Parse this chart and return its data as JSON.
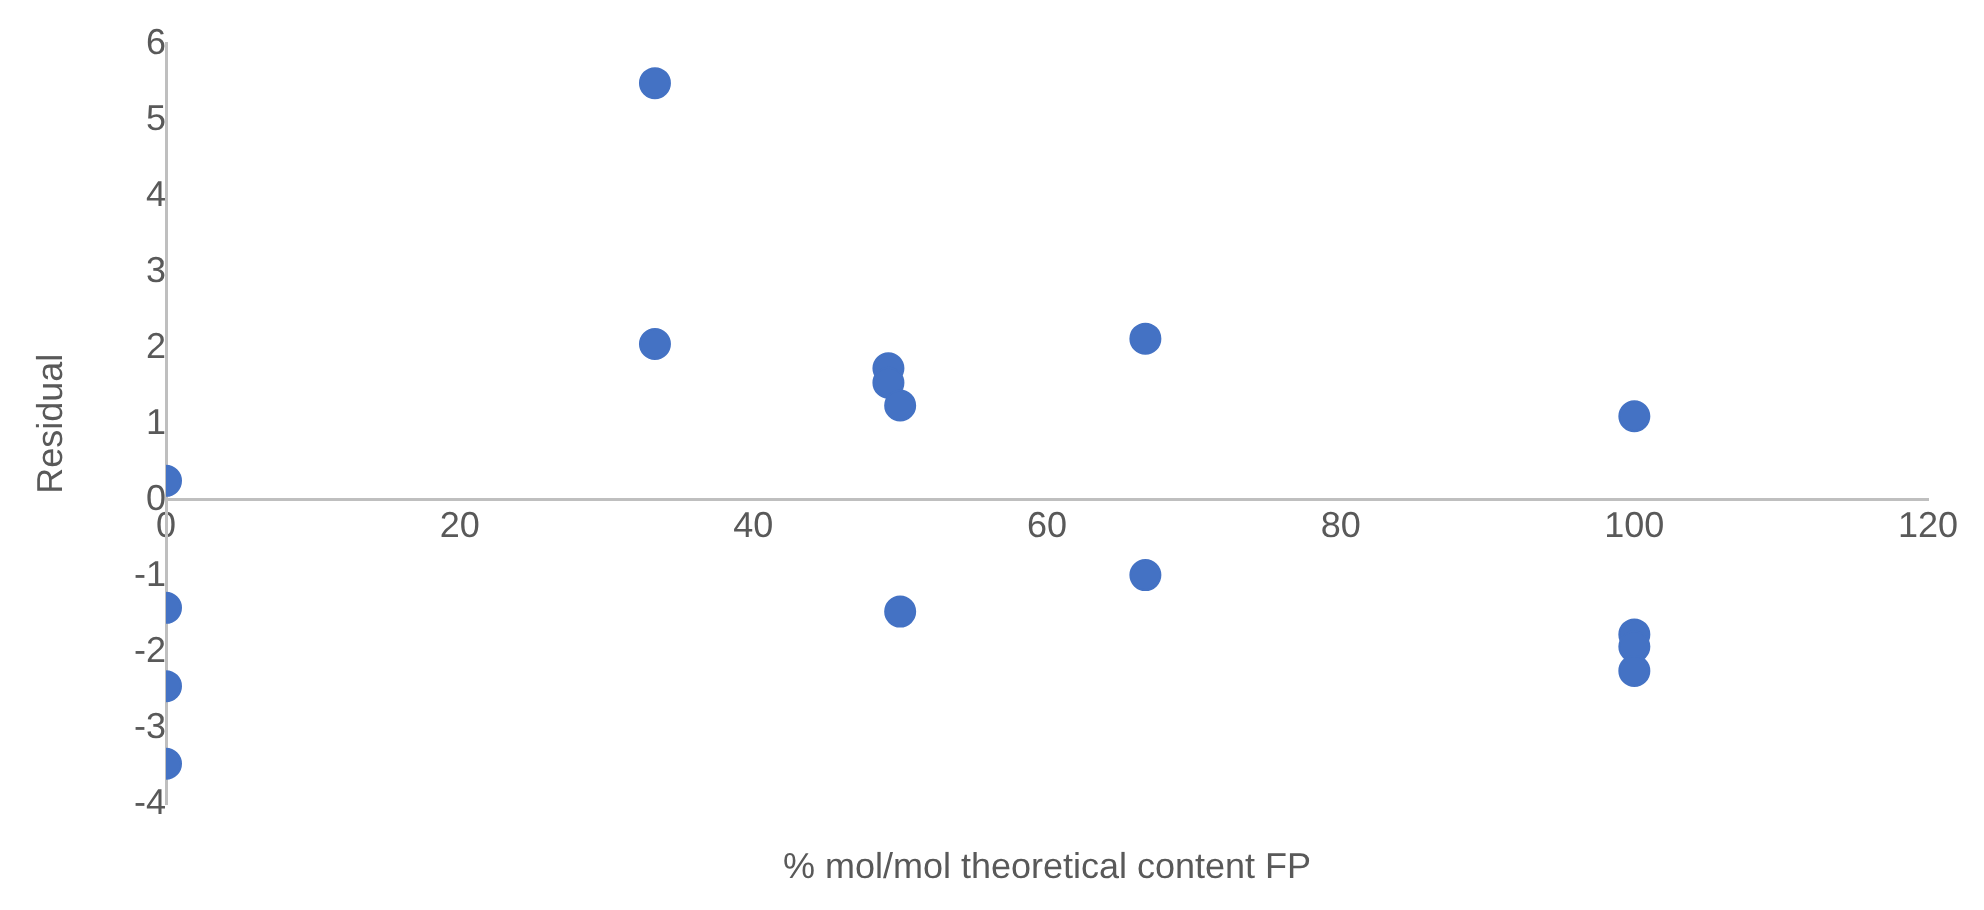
{
  "chart_data": {
    "type": "scatter",
    "xlabel": "% mol/mol theoretical content FP",
    "ylabel": "Residual",
    "x": [
      0,
      0,
      0,
      0,
      33.3,
      33.3,
      49.2,
      49.2,
      50,
      50,
      66.7,
      66.7,
      100,
      100,
      100,
      100
    ],
    "values": [
      0.25,
      -1.42,
      -2.45,
      -3.47,
      5.48,
      2.05,
      1.73,
      1.54,
      1.24,
      -1.47,
      2.12,
      -0.99,
      1.1,
      -1.77,
      -1.93,
      -2.25
    ],
    "color": "#4472c4",
    "marker": "circle",
    "xlim": [
      0,
      120
    ],
    "xticks": [
      0,
      20,
      40,
      60,
      80,
      100,
      120
    ],
    "ylim": [
      -4,
      6
    ],
    "yticks": [
      -4,
      -3,
      -2,
      -1,
      0,
      1,
      2,
      3,
      4,
      5,
      6
    ],
    "grid": false,
    "legend": false
  }
}
